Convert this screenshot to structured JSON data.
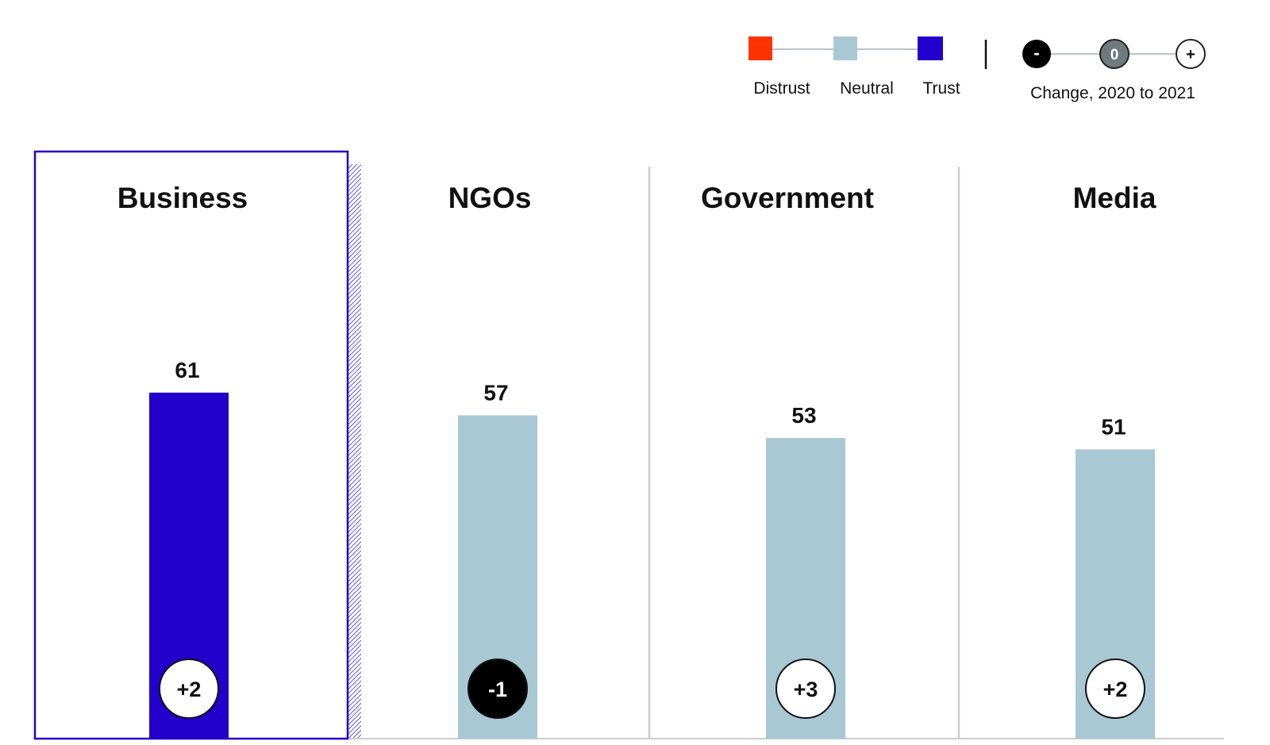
{
  "legend": {
    "distrust_label": "Distrust",
    "neutral_label": "Neutral",
    "trust_label": "Trust",
    "change_label": "Change, 2020 to 2021",
    "change_negative_symbol": "-",
    "change_zero_symbol": "0",
    "change_positive_symbol": "+"
  },
  "colors": {
    "distrust": "#ff3300",
    "neutral": "#a8c8d4",
    "trust": "#2200cc",
    "change_negative_fill": "#000000",
    "change_zero_fill": "#6e7a7d",
    "change_positive_fill": "#ffffff",
    "divider": "#cccccc",
    "selection_border": "#2200cc"
  },
  "selected_category": "Business",
  "chart_data": {
    "type": "bar",
    "categories": [
      "Business",
      "NGOs",
      "Government",
      "Media"
    ],
    "values": [
      61,
      57,
      53,
      51
    ],
    "value_labels": [
      "61",
      "57",
      "53",
      "51"
    ],
    "bar_status": [
      "trust",
      "neutral",
      "neutral",
      "neutral"
    ],
    "changes": [
      2,
      -1,
      3,
      2
    ],
    "change_labels": [
      "+2",
      "-1",
      "+3",
      "+2"
    ],
    "title": "",
    "xlabel": "",
    "ylabel": "",
    "ylim": [
      0,
      100
    ],
    "grid": false,
    "legend_position": "top-right"
  }
}
